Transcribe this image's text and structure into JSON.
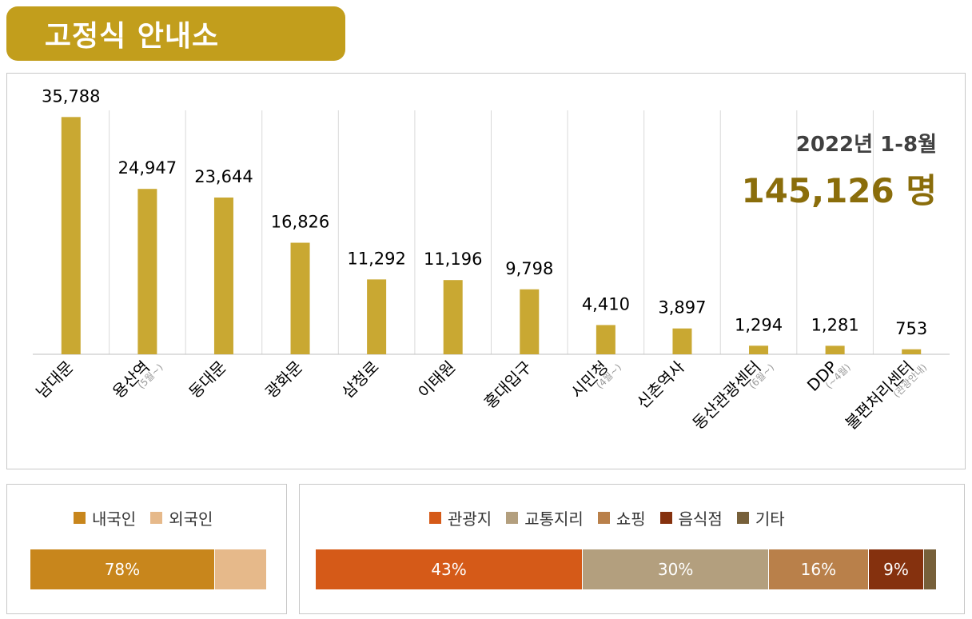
{
  "header": {
    "title": "고정식 안내소"
  },
  "total": {
    "period": "2022년 1-8월",
    "value": "145,126 명"
  },
  "colors": {
    "accent": "#c29e1c",
    "bar": "#c9a832",
    "gridline": "#d9d9d9",
    "total_text": "#8a6d0b"
  },
  "chart_data": [
    {
      "type": "bar",
      "categories": [
        "남대문",
        "용산역",
        "동대문",
        "광화문",
        "삼청로",
        "이태원",
        "홍대입구",
        "시민청",
        "신촌역사",
        "동산관광센터",
        "DDP",
        "불편처리센터"
      ],
      "category_notes": [
        "",
        "(5월~)",
        "",
        "",
        "",
        "",
        "",
        "(4월~)",
        "",
        "(6월~)",
        "(~4월)",
        "(관광안내)"
      ],
      "values": [
        35788,
        24947,
        23644,
        16826,
        11292,
        11196,
        9798,
        4410,
        3897,
        1294,
        1281,
        753
      ],
      "value_labels": [
        "35,788",
        "24,947",
        "23,644",
        "16,826",
        "11,292",
        "11,196",
        "9,798",
        "4,410",
        "3,897",
        "1,294",
        "1,281",
        "753"
      ],
      "ylim": [
        0,
        38000
      ],
      "grid": "vertical separators",
      "legend": "none"
    },
    {
      "type": "bar",
      "orientation": "horizontal-stacked",
      "series": [
        {
          "name": "내국인",
          "value": 78,
          "label": "78%",
          "color": "#c8861c"
        },
        {
          "name": "외국인",
          "value": 22,
          "label": "",
          "color": "#e6b98a"
        }
      ],
      "legend": "top"
    },
    {
      "type": "bar",
      "orientation": "horizontal-stacked",
      "series": [
        {
          "name": "관광지",
          "value": 43,
          "label": "43%",
          "color": "#d55a18"
        },
        {
          "name": "교통지리",
          "value": 30,
          "label": "30%",
          "color": "#b39f7e"
        },
        {
          "name": "쇼핑",
          "value": 16,
          "label": "16%",
          "color": "#b9804a"
        },
        {
          "name": "음식점",
          "value": 9,
          "label": "9%",
          "color": "#85310e"
        },
        {
          "name": "기타",
          "value": 2,
          "label": "",
          "color": "#77603a"
        }
      ],
      "legend": "top"
    }
  ]
}
